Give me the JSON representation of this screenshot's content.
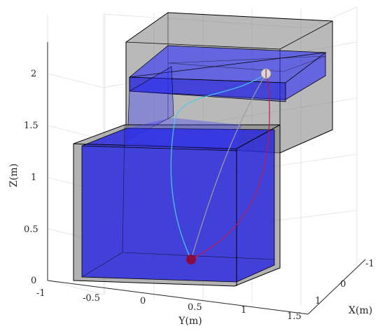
{
  "chart_data": {
    "type": "line",
    "title": "",
    "xlabel": "X(m)",
    "ylabel": "Y(m)",
    "zlabel": "Z(m)",
    "x_ticks": [
      "-1",
      "0",
      "1"
    ],
    "y_ticks": [
      "-1",
      "-0.5",
      "0",
      "0.5",
      "1",
      "1.5"
    ],
    "z_ticks": [
      "0",
      "0.5",
      "1",
      "1.5",
      "2"
    ],
    "grid": true,
    "legend": "none",
    "obstacles": [
      {
        "name": "lower box",
        "color": "#808080"
      },
      {
        "name": "upper box",
        "color": "#808080"
      }
    ],
    "start_marker_color": "#8b0a3c",
    "goal_marker_color": "#d9d9d9",
    "series_colors": [
      "#48c8f0",
      "#9e9e9e",
      "#c0184c"
    ]
  }
}
